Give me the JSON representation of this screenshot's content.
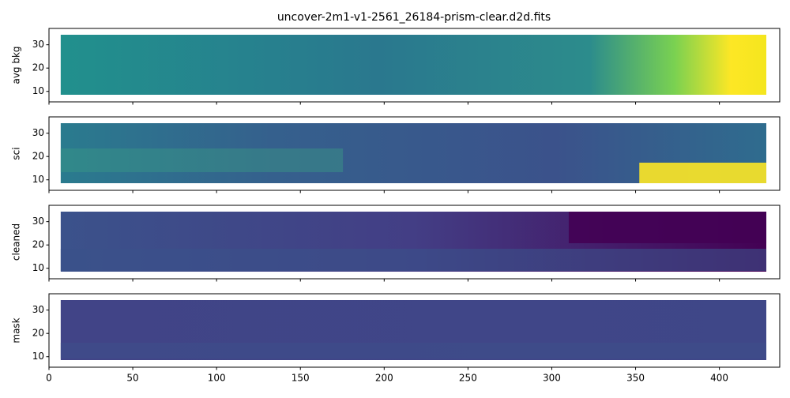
{
  "chart_data": [
    {
      "type": "image",
      "title": "uncover-2m1-v1-2561_26184-prism-clear.d2d.fits",
      "ylabel": "avg bkg",
      "xlim": [
        0,
        436
      ],
      "ylim": [
        5.5,
        37
      ],
      "xticks": [
        0,
        50,
        100,
        150,
        200,
        250,
        300,
        350,
        400
      ],
      "yticks": [
        10,
        20,
        30
      ]
    },
    {
      "type": "image",
      "ylabel": "sci",
      "xlim": [
        0,
        436
      ],
      "ylim": [
        5.5,
        37
      ],
      "xticks": [
        0,
        50,
        100,
        150,
        200,
        250,
        300,
        350,
        400
      ],
      "yticks": [
        10,
        20,
        30
      ]
    },
    {
      "type": "image",
      "ylabel": "cleaned",
      "xlim": [
        0,
        436
      ],
      "ylim": [
        5.5,
        37
      ],
      "xticks": [
        0,
        50,
        100,
        150,
        200,
        250,
        300,
        350,
        400
      ],
      "yticks": [
        10,
        20,
        30
      ]
    },
    {
      "type": "image",
      "ylabel": "mask",
      "xlim": [
        0,
        436
      ],
      "ylim": [
        5.5,
        37
      ],
      "xticks": [
        0,
        50,
        100,
        150,
        200,
        250,
        300,
        350,
        400
      ],
      "yticks": [
        10,
        20,
        30
      ]
    }
  ]
}
